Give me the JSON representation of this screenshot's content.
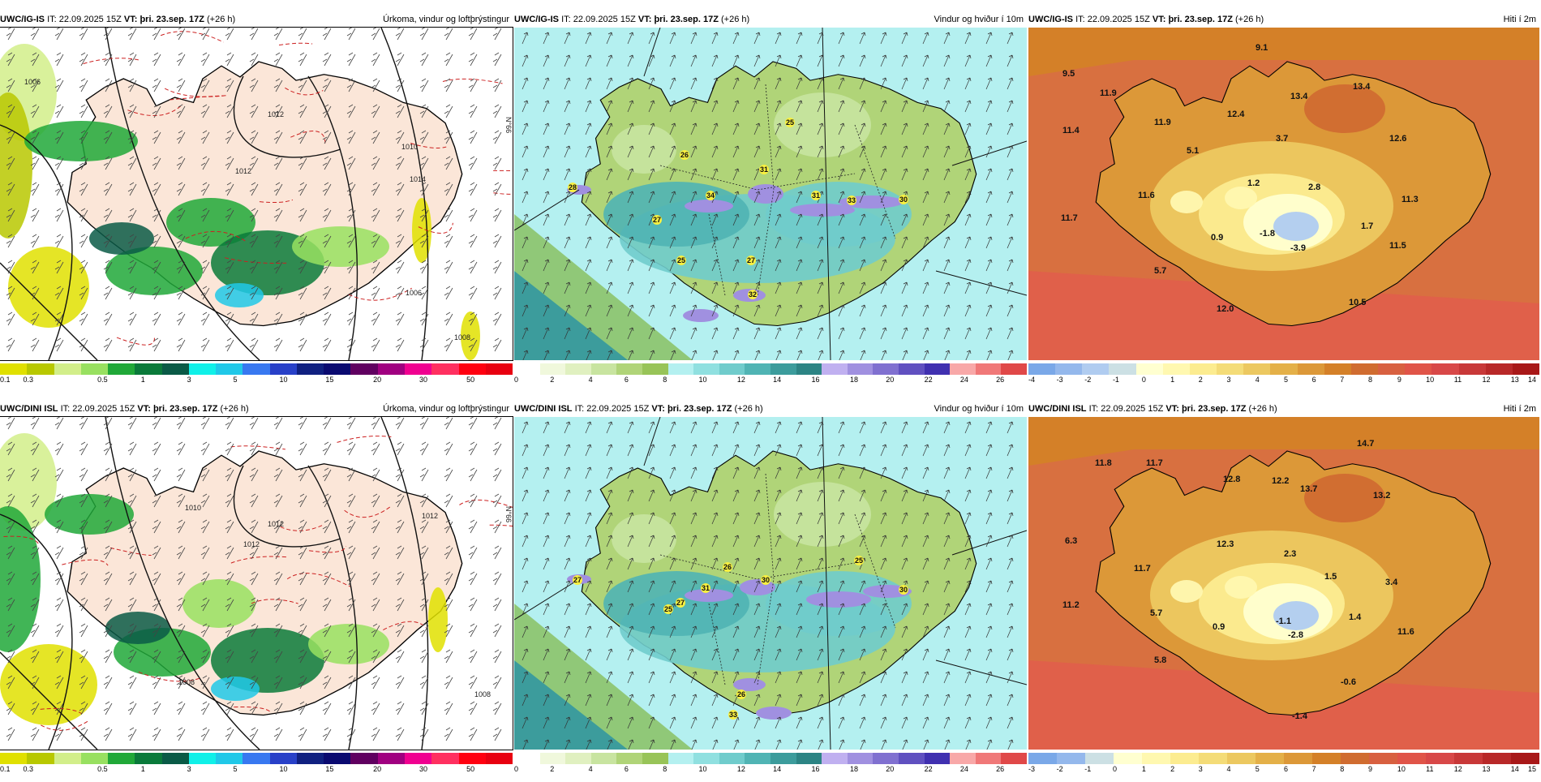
{
  "rows": [
    {
      "model": "UWC/IG-IS",
      "it_label": "IT:",
      "it": "22.09.2025 15Z",
      "vt_label": "VT:",
      "vt": "þri. 23.sep. 17Z",
      "lead": "(+26 h)"
    },
    {
      "model": "UWC/DINI ISL",
      "it_label": "IT:",
      "it": "22.09.2025 15Z",
      "vt_label": "VT:",
      "vt": "þri. 23.sep. 17Z",
      "lead": "(+26 h)"
    }
  ],
  "panel_titles": {
    "precip": "Úrkoma, vindur og loftþrýstingur",
    "wind": "Vindur og hviður í 10m",
    "temp": "Hiti í 2m"
  },
  "colorbars": {
    "precip": {
      "colors": [
        "#e0e000",
        "#b8c800",
        "#d2ee8a",
        "#98e060",
        "#20a838",
        "#0a7a3a",
        "#0a5a46",
        "#10f0e8",
        "#20c8e8",
        "#3878f0",
        "#2840c8",
        "#102080",
        "#0a0a70",
        "#600060",
        "#a00080",
        "#f00090",
        "#ff3060",
        "#ff0010",
        "#e80010"
      ],
      "ticks": [
        {
          "label": "0.1",
          "pos": 0
        },
        {
          "label": "0.3",
          "pos": 0.045
        },
        {
          "label": "0.5",
          "pos": 0.19
        },
        {
          "label": "1",
          "pos": 0.275
        },
        {
          "label": "3",
          "pos": 0.365
        },
        {
          "label": "5",
          "pos": 0.455
        },
        {
          "label": "10",
          "pos": 0.545
        },
        {
          "label": "15",
          "pos": 0.635
        },
        {
          "label": "20",
          "pos": 0.728
        },
        {
          "label": "30",
          "pos": 0.818
        },
        {
          "label": "50",
          "pos": 0.91
        }
      ]
    },
    "wind": {
      "colors": [
        "#ffffff",
        "#f0f8dc",
        "#e0f0c0",
        "#c8e4a0",
        "#b0d478",
        "#98c458",
        "#b4f0f0",
        "#90e0e0",
        "#70cccc",
        "#50b4b4",
        "#3c9c9c",
        "#2c8484",
        "#c0b0f0",
        "#a090e0",
        "#8070d0",
        "#6050c0",
        "#4030b0",
        "#f8a8a8",
        "#f07878",
        "#e04848"
      ],
      "ticks": [
        {
          "label": "0",
          "pos": 0
        },
        {
          "label": "2",
          "pos": 0.07
        },
        {
          "label": "4",
          "pos": 0.145
        },
        {
          "label": "6",
          "pos": 0.215
        },
        {
          "label": "8",
          "pos": 0.29
        },
        {
          "label": "10",
          "pos": 0.36
        },
        {
          "label": "12",
          "pos": 0.435
        },
        {
          "label": "14",
          "pos": 0.505
        },
        {
          "label": "16",
          "pos": 0.58
        },
        {
          "label": "18",
          "pos": 0.655
        },
        {
          "label": "20",
          "pos": 0.725
        },
        {
          "label": "22",
          "pos": 0.8
        },
        {
          "label": "24",
          "pos": 0.87
        },
        {
          "label": "26",
          "pos": 0.94
        }
      ]
    },
    "temp_top": {
      "colors": [
        "#7aa8e8",
        "#94b8ec",
        "#b0ccf0",
        "#cce0e4",
        "#ffffd0",
        "#fff8b0",
        "#fcec90",
        "#f4dc78",
        "#ecc860",
        "#e4b048",
        "#dc9838",
        "#d48028",
        "#d06c30",
        "#d86040",
        "#e05448",
        "#d84848",
        "#c83838",
        "#b82828",
        "#a81818"
      ],
      "ticks": [
        {
          "label": "-4",
          "pos": 0
        },
        {
          "label": "-3",
          "pos": 0.055
        },
        {
          "label": "-2",
          "pos": 0.11
        },
        {
          "label": "-1",
          "pos": 0.165
        },
        {
          "label": "0",
          "pos": 0.222
        },
        {
          "label": "1",
          "pos": 0.278
        },
        {
          "label": "2",
          "pos": 0.333
        },
        {
          "label": "3",
          "pos": 0.388
        },
        {
          "label": "4",
          "pos": 0.444
        },
        {
          "label": "5",
          "pos": 0.5
        },
        {
          "label": "6",
          "pos": 0.555
        },
        {
          "label": "7",
          "pos": 0.61
        },
        {
          "label": "8",
          "pos": 0.665
        },
        {
          "label": "9",
          "pos": 0.722
        },
        {
          "label": "10",
          "pos": 0.778
        },
        {
          "label": "11",
          "pos": 0.833
        },
        {
          "label": "12",
          "pos": 0.888
        },
        {
          "label": "13",
          "pos": 0.944
        },
        {
          "label": "14",
          "pos": 0.98
        }
      ]
    },
    "temp_bottom": {
      "colors": [
        "#7aa8e8",
        "#94b8ec",
        "#cce0e4",
        "#ffffd0",
        "#fff8b0",
        "#fcec90",
        "#f4dc78",
        "#ecc860",
        "#e4b048",
        "#dc9838",
        "#d48028",
        "#d06c30",
        "#d86040",
        "#e05448",
        "#d84848",
        "#c83838",
        "#b82828",
        "#a81818"
      ],
      "ticks": [
        {
          "label": "-3",
          "pos": 0
        },
        {
          "label": "-2",
          "pos": 0.055
        },
        {
          "label": "-1",
          "pos": 0.11
        },
        {
          "label": "0",
          "pos": 0.165
        },
        {
          "label": "1",
          "pos": 0.222
        },
        {
          "label": "2",
          "pos": 0.278
        },
        {
          "label": "3",
          "pos": 0.333
        },
        {
          "label": "4",
          "pos": 0.388
        },
        {
          "label": "5",
          "pos": 0.444
        },
        {
          "label": "6",
          "pos": 0.5
        },
        {
          "label": "7",
          "pos": 0.555
        },
        {
          "label": "8",
          "pos": 0.61
        },
        {
          "label": "9",
          "pos": 0.665
        },
        {
          "label": "10",
          "pos": 0.722
        },
        {
          "label": "11",
          "pos": 0.778
        },
        {
          "label": "12",
          "pos": 0.833
        },
        {
          "label": "13",
          "pos": 0.888
        },
        {
          "label": "14",
          "pos": 0.944
        },
        {
          "label": "15",
          "pos": 0.98
        }
      ]
    }
  },
  "isobar_labels": {
    "top": [
      "1006",
      "1012",
      "1012",
      "1014",
      "1010",
      "1006",
      "1008"
    ],
    "bottom": [
      "1008",
      "1012",
      "1010",
      "1012",
      "1012",
      "1008"
    ]
  },
  "gust_labels": {
    "top": [
      "28",
      "26",
      "31",
      "34",
      "31",
      "33",
      "30",
      "25",
      "27",
      "25",
      "27",
      "32"
    ],
    "bottom": [
      "27",
      "26",
      "31",
      "27",
      "30",
      "25",
      "30",
      "25",
      "26",
      "33"
    ]
  },
  "temp_labels": {
    "top": [
      "9.5",
      "11.9",
      "9.1",
      "13.4",
      "13.4",
      "11.4",
      "11.9",
      "12.4",
      "3.7",
      "5.1",
      "12.6",
      "1.2",
      "2.8",
      "11.6",
      "11.3",
      "11.7",
      "0.9",
      "-1.8",
      "1.7",
      "-3.9",
      "11.5",
      "5.7",
      "12.0",
      "10.5"
    ],
    "bottom": [
      "11.8",
      "11.7",
      "14.7",
      "12.8",
      "12.2",
      "13.7",
      "13.2",
      "6.3",
      "12.3",
      "2.3",
      "11.7",
      "1.5",
      "3.4",
      "11.2",
      "5.7",
      "0.9",
      "-1.1",
      "1.4",
      "-2.8",
      "11.6",
      "5.8",
      "-0.6",
      "-1.4"
    ]
  }
}
